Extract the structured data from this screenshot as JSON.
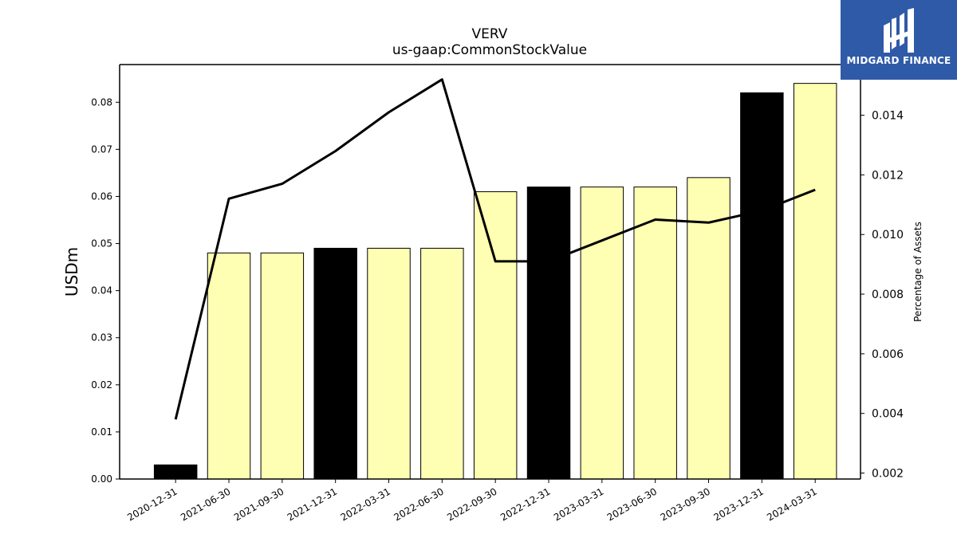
{
  "chart_data": {
    "type": "bar",
    "title": "VERV",
    "subtitle": "us-gaap:CommonStockValue",
    "ylabel": "USDm",
    "y2label": "Percentage of Assets",
    "categories": [
      "2020-12-31",
      "2021-06-30",
      "2021-09-30",
      "2021-12-31",
      "2022-03-31",
      "2022-06-30",
      "2022-09-30",
      "2022-12-31",
      "2023-03-31",
      "2023-06-30",
      "2023-09-30",
      "2023-12-31",
      "2024-03-31"
    ],
    "series": [
      {
        "type": "bar",
        "values": [
          0.003,
          0.048,
          0.048,
          0.049,
          0.049,
          0.049,
          0.061,
          0.062,
          0.062,
          0.062,
          0.064,
          0.082,
          0.084
        ],
        "highlight": [
          true,
          false,
          false,
          true,
          false,
          false,
          false,
          true,
          false,
          false,
          false,
          true,
          false
        ]
      },
      {
        "type": "line",
        "axis": "right",
        "values": [
          0.0038,
          0.0112,
          0.0117,
          0.0128,
          0.0141,
          0.0152,
          0.0091,
          0.0091,
          0.0098,
          0.0105,
          0.0104,
          0.0108,
          0.0115
        ]
      }
    ],
    "ylim": [
      0,
      0.088
    ],
    "y2lim": [
      0.0018,
      0.0157
    ],
    "yticks": [
      "0.00",
      "0.01",
      "0.02",
      "0.03",
      "0.04",
      "0.05",
      "0.06",
      "0.07",
      "0.08"
    ],
    "y2ticks": [
      "0.002",
      "0.004",
      "0.006",
      "0.008",
      "0.010",
      "0.012",
      "0.014"
    ],
    "colors": {
      "bar_default": "#ffffb3",
      "bar_highlight": "#000000",
      "line": "#000000"
    }
  },
  "logo": {
    "text": "MIDGARD FINANCE",
    "icon": "midgard-logo-icon",
    "background": "#2f5aa8"
  }
}
